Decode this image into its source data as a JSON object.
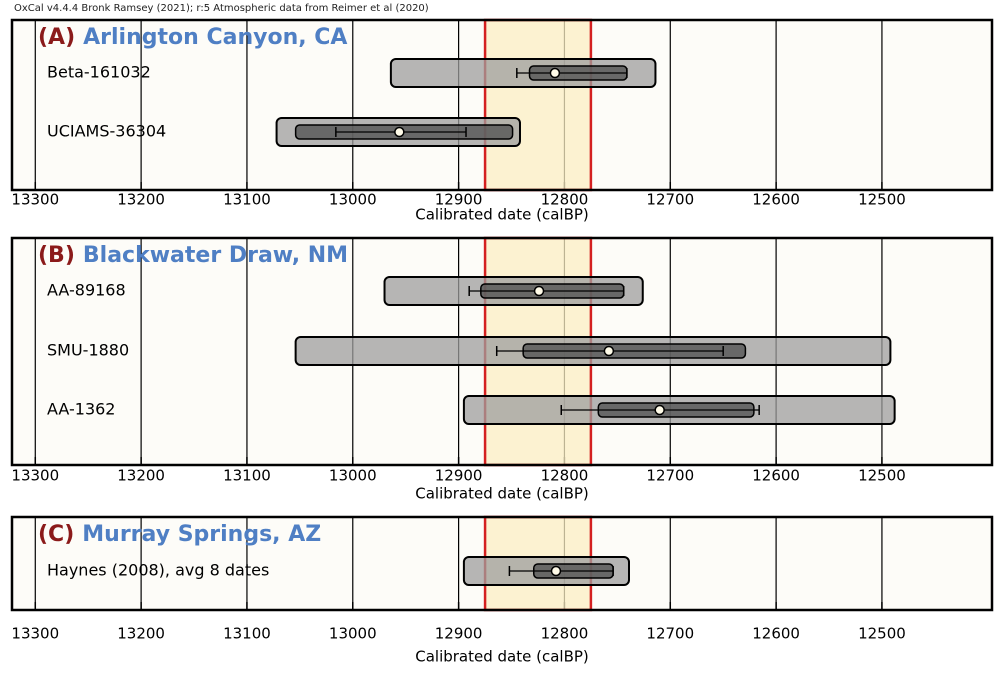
{
  "caption": "OxCal v4.4.4 Bronk Ramsey (2021); r:5 Atmospheric data from Reimer et al (2020)",
  "chart_data": [
    {
      "type": "range",
      "label": "(A)",
      "title": "Arlington Canyon, CA",
      "x_label": "Calibrated date (calBP)",
      "xlim": [
        13322,
        12396
      ],
      "xticks": [
        13300,
        13200,
        13100,
        13000,
        12900,
        12800,
        12700,
        12600,
        12500
      ],
      "grid": true,
      "highlight": [
        12875,
        12775
      ],
      "highlight_color": "#fbefc4",
      "highlight_edge": "#d42020",
      "series": [
        {
          "name": "Beta-161032",
          "outer": [
            12964,
            12714
          ],
          "inner": [
            12833,
            12741
          ],
          "error": [
            12845,
            12741
          ],
          "mean": 12809
        },
        {
          "name": "UCIAMS-36304",
          "outer": [
            13072,
            12842
          ],
          "inner": [
            13054,
            12849
          ],
          "error": [
            13016,
            12893
          ],
          "mean": 12956
        }
      ]
    },
    {
      "type": "range",
      "label": "(B)",
      "title": "Blackwater Draw, NM",
      "x_label": "Calibrated date (calBP)",
      "xlim": [
        13322,
        12396
      ],
      "xticks": [
        13300,
        13200,
        13100,
        13000,
        12900,
        12800,
        12700,
        12600,
        12500
      ],
      "grid": true,
      "highlight": [
        12875,
        12775
      ],
      "highlight_color": "#fbefc4",
      "highlight_edge": "#d42020",
      "series": [
        {
          "name": "AA-89168",
          "outer": [
            12970,
            12726
          ],
          "inner": [
            12879,
            12744
          ],
          "error": [
            12890,
            12744
          ],
          "mean": 12824
        },
        {
          "name": "SMU-1880",
          "outer": [
            13054,
            12492
          ],
          "inner": [
            12839,
            12629
          ],
          "error": [
            12864,
            12650
          ],
          "mean": 12758
        },
        {
          "name": "AA-1362",
          "outer": [
            12895,
            12488
          ],
          "inner": [
            12768,
            12621
          ],
          "error": [
            12803,
            12616
          ],
          "mean": 12710
        }
      ]
    },
    {
      "type": "range",
      "label": "(C)",
      "title": "Murray Springs, AZ",
      "x_label": "Calibrated date (calBP)",
      "xlim": [
        13322,
        12396
      ],
      "xticks": [
        13300,
        13200,
        13100,
        13000,
        12900,
        12800,
        12700,
        12600,
        12500
      ],
      "grid": true,
      "highlight": [
        12875,
        12775
      ],
      "highlight_color": "#fbefc4",
      "highlight_edge": "#d42020",
      "series": [
        {
          "name": "Haynes (2008), avg 8 dates",
          "outer": [
            12895,
            12739
          ],
          "inner": [
            12829,
            12754
          ],
          "error": [
            12852,
            12754
          ],
          "mean": 12808
        }
      ]
    }
  ]
}
